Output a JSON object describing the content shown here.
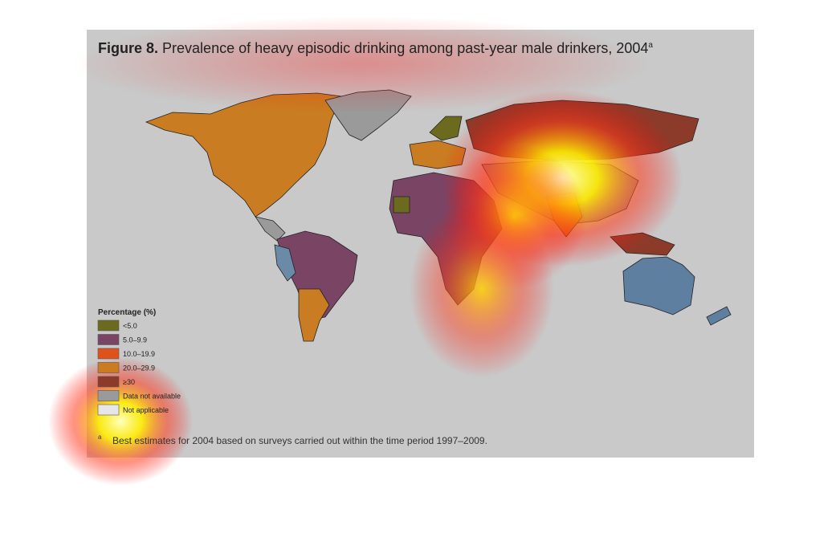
{
  "header": {
    "label": "Figure 8.",
    "title": "Prevalence of heavy episodic drinking among past-year male drinkers, 2004",
    "superscript": "a"
  },
  "legend": {
    "title": "Percentage (%)",
    "items": [
      {
        "label": "<5.0",
        "color": "#6b6a1f"
      },
      {
        "label": "5.0–9.9",
        "color": "#7a4565"
      },
      {
        "label": "10.0–19.9",
        "color": "#e0521c"
      },
      {
        "label": "20.0–29.9",
        "color": "#c97c22"
      },
      {
        "label": "≥30",
        "color": "#8c3b2b"
      },
      {
        "label": "Data not available",
        "color": "#9a9a9a"
      },
      {
        "label": "Not applicable",
        "color": "#e6e6e6"
      }
    ]
  },
  "footnote": {
    "marker": "a",
    "text": "Best estimates for 2004 based on surveys carried out within the time period 1997–2009."
  }
}
